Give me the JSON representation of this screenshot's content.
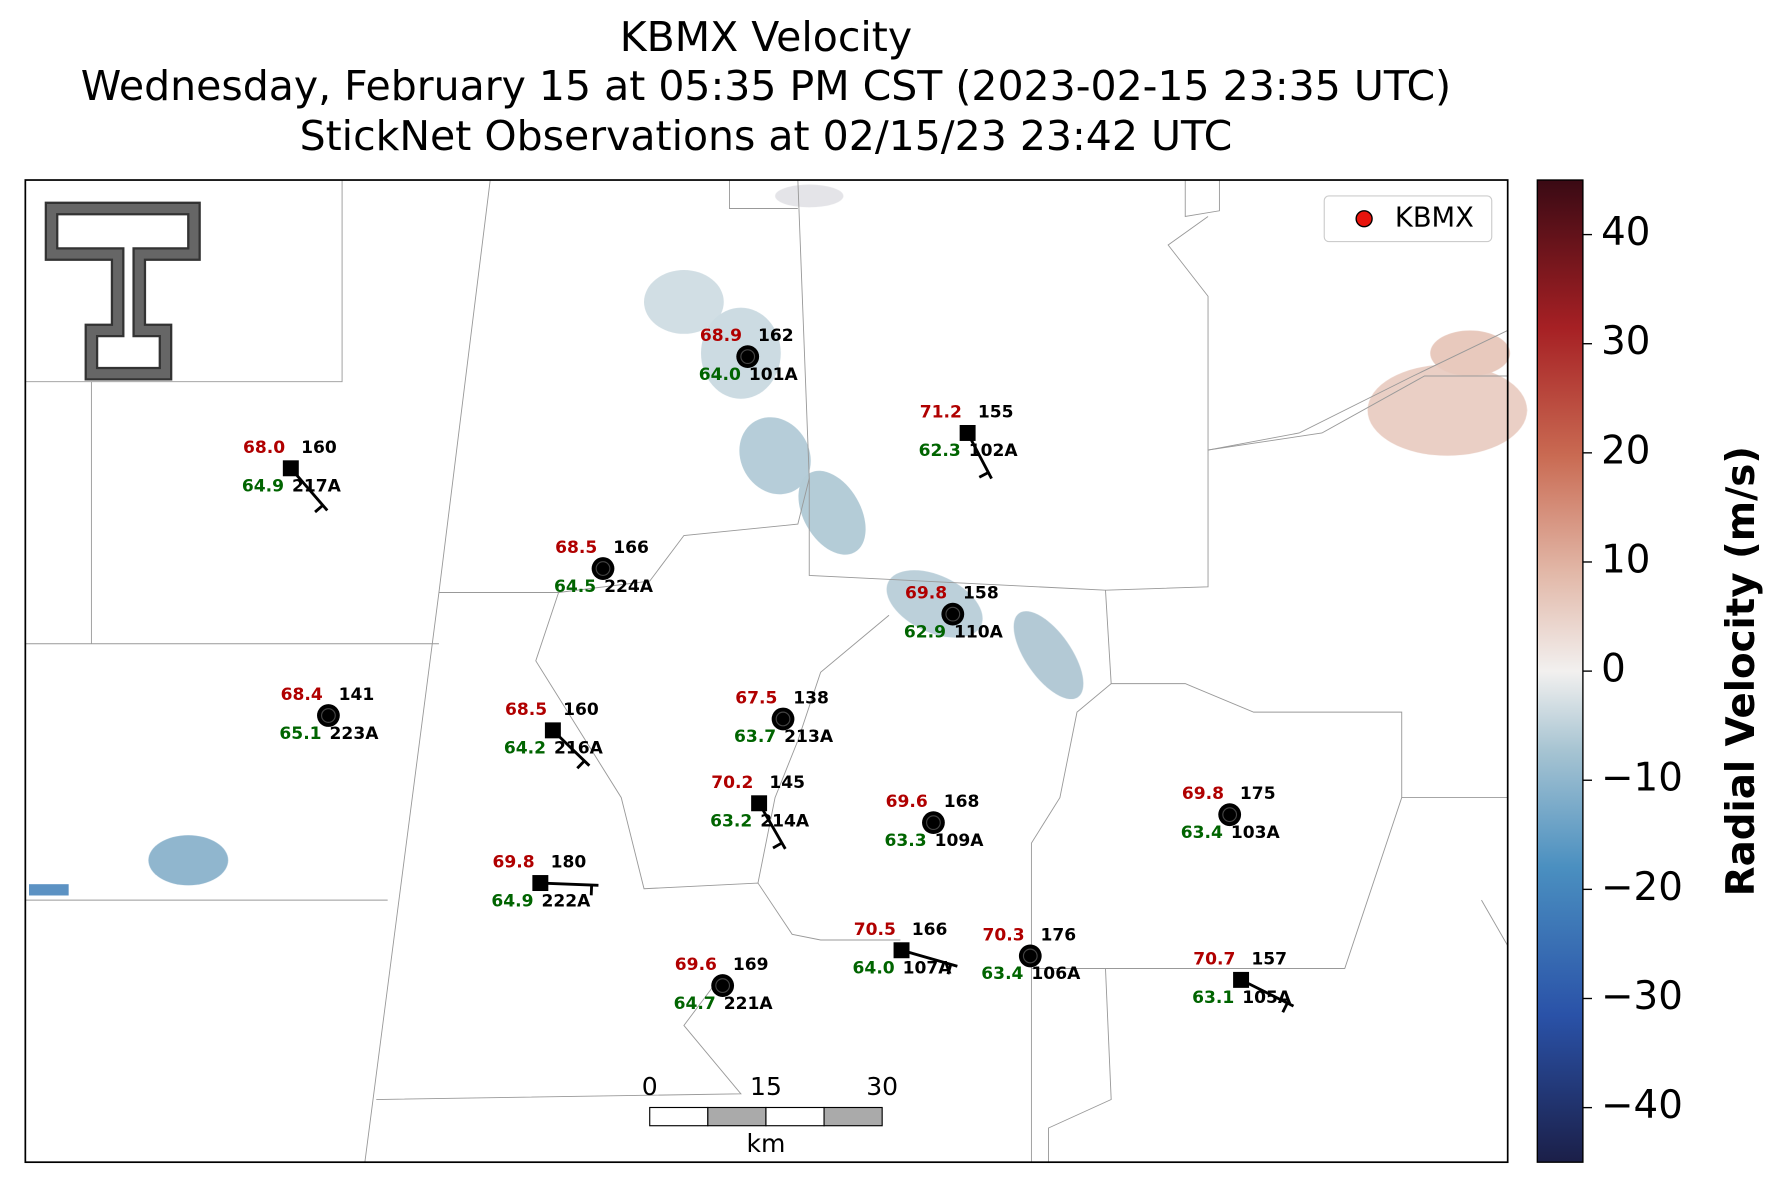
{
  "header": {
    "title": [
      "KBMX Velocity",
      "Wednesday, February 15 at 05:35 PM CST (2023-02-15 23:35 UTC)",
      "StickNet Observations at 02/15/23 23:42 UTC"
    ]
  },
  "legend": {
    "label": "KBMX",
    "color": "#e8140c"
  },
  "stations": [
    {
      "id": "101A",
      "temp": "68.9",
      "dewpoint": "64.0",
      "value": "162",
      "marker": "circle"
    },
    {
      "id": "102A",
      "temp": "71.2",
      "dewpoint": "62.3",
      "value": "155",
      "marker": "square"
    },
    {
      "id": "217A",
      "temp": "68.0",
      "dewpoint": "64.9",
      "value": "160",
      "marker": "square"
    },
    {
      "id": "224A",
      "temp": "68.5",
      "dewpoint": "64.5",
      "value": "166",
      "marker": "circle"
    },
    {
      "id": "110A",
      "temp": "69.8",
      "dewpoint": "62.9",
      "value": "158",
      "marker": "circle"
    },
    {
      "id": "223A",
      "temp": "68.4",
      "dewpoint": "65.1",
      "value": "141",
      "marker": "circle"
    },
    {
      "id": "216A",
      "temp": "68.5",
      "dewpoint": "64.2",
      "value": "160",
      "marker": "square"
    },
    {
      "id": "213A",
      "temp": "67.5",
      "dewpoint": "63.7",
      "value": "138",
      "marker": "circle"
    },
    {
      "id": "214A",
      "temp": "70.2",
      "dewpoint": "63.2",
      "value": "145",
      "marker": "square"
    },
    {
      "id": "109A",
      "temp": "69.6",
      "dewpoint": "63.3",
      "value": "168",
      "marker": "circle"
    },
    {
      "id": "103A",
      "temp": "69.8",
      "dewpoint": "63.4",
      "value": "175",
      "marker": "circle"
    },
    {
      "id": "222A",
      "temp": "69.8",
      "dewpoint": "64.9",
      "value": "180",
      "marker": "square"
    },
    {
      "id": "107A",
      "temp": "70.5",
      "dewpoint": "64.0",
      "value": "166",
      "marker": "square"
    },
    {
      "id": "106A",
      "temp": "70.3",
      "dewpoint": "63.4",
      "value": "176",
      "marker": "circle"
    },
    {
      "id": "105A",
      "temp": "70.7",
      "dewpoint": "63.1",
      "value": "157",
      "marker": "square"
    },
    {
      "id": "221A",
      "temp": "69.6",
      "dewpoint": "64.7",
      "value": "169",
      "marker": "circle"
    }
  ],
  "scale_bar": {
    "ticks": [
      "0",
      "15",
      "30"
    ],
    "unit": "km"
  },
  "colorbar": {
    "label": "Radial Velocity (m/s)",
    "lim": [
      -45,
      45
    ],
    "ticks": [
      {
        "value": -40,
        "label": "−40"
      },
      {
        "value": -30,
        "label": "−30"
      },
      {
        "value": -20,
        "label": "−20"
      },
      {
        "value": -10,
        "label": "−10"
      },
      0,
      10,
      20,
      30,
      40
    ]
  }
}
